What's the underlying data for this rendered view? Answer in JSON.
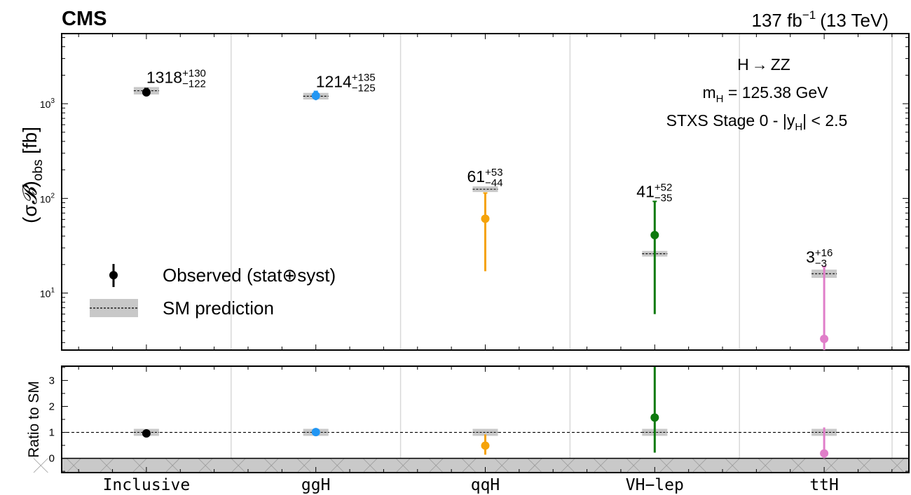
{
  "header": {
    "experiment": "CMS",
    "lumi_value": "137 fb",
    "lumi_exp": "−1",
    "lumi_energy": "(13 TeV)"
  },
  "annotations": {
    "process_prefix": "H",
    "process_arrow": "→",
    "process_suffix": "ZZ",
    "mass_main": "m",
    "mass_sub": "H",
    "mass_value": " = 125.38  GeV",
    "stxs_prefix": "STXS Stage 0 - |y",
    "stxs_sub": "H",
    "stxs_suffix": "| < 2.5"
  },
  "axes": {
    "top_ylabel_main": "(σ",
    "top_ylabel_script": "𝓑",
    "top_ylabel_close": ")",
    "top_ylabel_sub": "obs",
    "top_ylabel_unit": " [fb]",
    "bottom_ylabel": "Ratio to SM"
  },
  "legend": {
    "observed": "Observed (stat⊕syst)",
    "sm": "SM prediction"
  },
  "chart_data": {
    "type": "scatter",
    "categories": [
      "Inclusive",
      "ggH",
      "qqH",
      "VH−lep",
      "ttH"
    ],
    "top_panel": {
      "yscale": "log",
      "ylim": [
        2.5,
        5500
      ],
      "ytick_base": "10",
      "yticks": [
        {
          "value": 10,
          "exp": "1"
        },
        {
          "value": 100,
          "exp": "2"
        },
        {
          "value": 1000,
          "exp": "3"
        }
      ],
      "points": [
        {
          "category": "Inclusive",
          "value": 1318,
          "err_up": 130,
          "err_down": 122,
          "sm": 1370,
          "sm_unc": 0.09,
          "color": "#000000",
          "label_value": "1318",
          "label_up": "+130",
          "label_down": "−122"
        },
        {
          "category": "ggH",
          "value": 1214,
          "err_up": 135,
          "err_down": 125,
          "sm": 1200,
          "sm_unc": 0.08,
          "color": "#2196f3",
          "label_value": "1214",
          "label_up": "+135",
          "label_down": "−125"
        },
        {
          "category": "qqH",
          "value": 61,
          "err_up": 53,
          "err_down": 44,
          "sm": 125,
          "sm_unc": 0.03,
          "color": "#f5a30a",
          "label_value": "61",
          "label_up": "+53",
          "label_down": "−44"
        },
        {
          "category": "VH−lep",
          "value": 41,
          "err_up": 52,
          "err_down": 35,
          "sm": 26,
          "sm_unc": 0.02,
          "color": "#0e7a0e",
          "label_value": "41",
          "label_up": "+52",
          "label_down": "−35"
        },
        {
          "category": "ttH",
          "value": 3,
          "err_up": 16,
          "err_down": 3,
          "sm": 16,
          "sm_unc": 0.1,
          "color": "#e07ec9",
          "label_value": "3",
          "label_up": "+16",
          "label_down": "−3"
        }
      ]
    },
    "ratio_panel": {
      "ylim": [
        -0.55,
        3.55
      ],
      "yticks": [
        0,
        1,
        2,
        3
      ],
      "reference_line": 1,
      "points": [
        {
          "category": "Inclusive",
          "value": 0.96,
          "err_up": 0.1,
          "err_down": 0.09
        },
        {
          "category": "ggH",
          "value": 1.01,
          "err_up": 0.11,
          "err_down": 0.1
        },
        {
          "category": "qqH",
          "value": 0.49,
          "err_up": 0.43,
          "err_down": 0.35
        },
        {
          "category": "VH−lep",
          "value": 1.57,
          "err_up": 2.0,
          "err_down": 1.35
        },
        {
          "category": "ttH",
          "value": 0.19,
          "err_up": 1.0,
          "err_down": 0.19
        }
      ]
    },
    "grid": false
  }
}
